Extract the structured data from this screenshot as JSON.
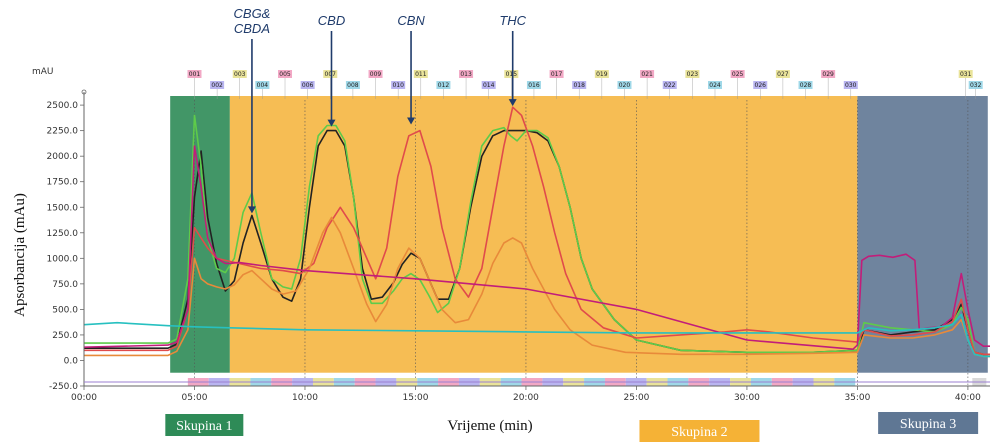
{
  "chart_data": {
    "type": "line",
    "ylabel": "Apsorbancija (mAu)",
    "xlabel": "Vrijeme (min)",
    "y_unit": "mAU",
    "xlim": [
      0,
      41
    ],
    "ylim": [
      -250,
      2550
    ],
    "x_ticks": [
      "00:00",
      "05:00",
      "10:00",
      "15:00",
      "20:00",
      "25:00",
      "30:00",
      "35:00",
      "40:00"
    ],
    "x_tick_values": [
      0,
      5,
      10,
      15,
      20,
      25,
      30,
      35,
      40
    ],
    "y_ticks": [
      "-250.0",
      "0.0",
      "250.0",
      "500.0",
      "750.0",
      "1000.0",
      "1250.0",
      "1500.0",
      "1750.0",
      "2000.0",
      "2250.0",
      "2500.0"
    ],
    "y_tick_values": [
      -250,
      0,
      250,
      500,
      750,
      1000,
      1250,
      1500,
      1750,
      2000,
      2250,
      2500
    ],
    "grid": "vertical dotted",
    "regions": [
      {
        "label": "Skupina 1",
        "x_start": 3.9,
        "x_end": 6.6,
        "color": "#2e8b57"
      },
      {
        "label": "Skupina 2",
        "x_start": 6.6,
        "x_end": 35.0,
        "color": "#f5b236"
      },
      {
        "label": "Skupina 3",
        "x_start": 35.0,
        "x_end": 40.9,
        "color": "#5f7794"
      }
    ],
    "annotations": [
      {
        "text": "CBG&\nCBDA",
        "x": 7.6,
        "y": 1420
      },
      {
        "text": "CBD",
        "x": 11.2,
        "y": 2270
      },
      {
        "text": "CBN",
        "x": 14.8,
        "y": 2290
      },
      {
        "text": "THC",
        "x": 19.4,
        "y": 2470
      }
    ],
    "fractions": [
      "001",
      "002",
      "003",
      "004",
      "005",
      "006",
      "007",
      "008",
      "009",
      "010",
      "011",
      "012",
      "013",
      "014",
      "015",
      "016",
      "017",
      "018",
      "019",
      "020",
      "021",
      "022",
      "023",
      "024",
      "025",
      "026",
      "027",
      "028",
      "029",
      "030",
      "031",
      "032"
    ],
    "series": [
      {
        "color": "#222222",
        "x": [
          0,
          3.8,
          4.2,
          4.7,
          5.0,
          5.3,
          5.6,
          6.0,
          6.4,
          6.8,
          7.2,
          7.6,
          8.0,
          8.5,
          9.0,
          9.4,
          9.8,
          10.2,
          10.6,
          11.0,
          11.4,
          11.8,
          12.2,
          12.6,
          13.0,
          13.5,
          14.0,
          14.4,
          14.8,
          15.2,
          15.6,
          16.0,
          16.5,
          17.0,
          17.5,
          18.0,
          18.5,
          19.0,
          19.5,
          20.0,
          20.5,
          21.0,
          21.5,
          22.0,
          22.5,
          23.0,
          24.0,
          25.0,
          27.0,
          30.0,
          33.0,
          35.0,
          35.3,
          36.5,
          37.5,
          38.5,
          39.3,
          39.7,
          40.0,
          40.3,
          40.7,
          41.0
        ],
        "y": [
          120,
          120,
          160,
          600,
          1600,
          2050,
          1400,
          950,
          680,
          780,
          1150,
          1420,
          1150,
          800,
          620,
          580,
          800,
          1500,
          2100,
          2250,
          2250,
          2100,
          1600,
          900,
          600,
          620,
          760,
          940,
          1050,
          1000,
          800,
          600,
          600,
          900,
          1500,
          2000,
          2200,
          2250,
          2250,
          2250,
          2230,
          2150,
          1900,
          1500,
          1000,
          700,
          400,
          200,
          100,
          80,
          80,
          100,
          300,
          250,
          280,
          300,
          400,
          550,
          300,
          80,
          60,
          60
        ]
      },
      {
        "color": "#5ecb4a",
        "x": [
          0,
          3.8,
          4.2,
          4.7,
          5.0,
          5.3,
          5.6,
          6.0,
          6.4,
          6.8,
          7.2,
          7.6,
          8.0,
          8.5,
          9.0,
          9.4,
          9.8,
          10.2,
          10.6,
          11.0,
          11.4,
          11.8,
          12.2,
          12.6,
          13.0,
          13.5,
          14.0,
          14.4,
          14.8,
          15.2,
          15.6,
          16.0,
          16.5,
          17.0,
          17.5,
          18.0,
          18.5,
          19.0,
          19.3,
          19.6,
          20.0,
          20.5,
          21.0,
          21.5,
          22.0,
          22.5,
          23.0,
          24.0,
          25.0,
          27.0,
          30.0,
          33.0,
          35.0,
          35.3,
          36.5,
          37.5,
          38.5,
          39.3,
          39.7,
          40.0,
          40.3,
          40.7,
          41.0
        ],
        "y": [
          170,
          170,
          210,
          800,
          2400,
          1900,
          1200,
          900,
          860,
          1000,
          1450,
          1640,
          1250,
          800,
          720,
          700,
          1000,
          1700,
          2200,
          2300,
          2300,
          2150,
          1600,
          800,
          560,
          560,
          680,
          800,
          850,
          790,
          640,
          470,
          560,
          900,
          1550,
          2100,
          2250,
          2280,
          2200,
          2150,
          2250,
          2250,
          2180,
          1900,
          1500,
          1000,
          700,
          400,
          200,
          100,
          80,
          80,
          100,
          370,
          320,
          300,
          280,
          350,
          520,
          400,
          80,
          60,
          60
        ]
      },
      {
        "color": "#e04b4b",
        "x": [
          0,
          3.8,
          4.2,
          4.7,
          5.0,
          5.3,
          5.6,
          6.0,
          6.4,
          6.8,
          7.2,
          7.6,
          8.0,
          9.0,
          9.8,
          10.4,
          11.0,
          11.6,
          12.2,
          12.8,
          13.2,
          13.7,
          14.2,
          14.7,
          15.2,
          15.7,
          16.2,
          16.8,
          17.4,
          18.0,
          18.5,
          19.0,
          19.4,
          19.8,
          20.3,
          20.8,
          21.3,
          21.8,
          22.5,
          23.5,
          25.0,
          27.0,
          29.0,
          30.0,
          31.0,
          33.0,
          35.0,
          35.3,
          36.5,
          37.5,
          38.5,
          39.3,
          39.7,
          40.0,
          40.3,
          40.7,
          41.0
        ],
        "y": [
          100,
          100,
          140,
          500,
          1300,
          1200,
          1100,
          1000,
          980,
          960,
          940,
          920,
          900,
          880,
          850,
          950,
          1300,
          1500,
          1300,
          1000,
          800,
          1100,
          1800,
          2200,
          2250,
          1900,
          1300,
          800,
          620,
          900,
          1500,
          2100,
          2480,
          2400,
          2100,
          1700,
          1250,
          850,
          500,
          320,
          220,
          250,
          280,
          300,
          280,
          220,
          180,
          300,
          240,
          250,
          280,
          380,
          600,
          300,
          80,
          60,
          60
        ]
      },
      {
        "color": "#e88a3a",
        "x": [
          0,
          3.8,
          4.2,
          4.7,
          5.0,
          5.3,
          5.6,
          6.0,
          6.4,
          6.8,
          7.2,
          7.6,
          8.0,
          8.5,
          9.0,
          9.6,
          10.2,
          10.8,
          11.2,
          11.6,
          12.2,
          12.8,
          13.2,
          13.7,
          14.2,
          14.7,
          15.2,
          15.7,
          16.2,
          16.8,
          17.4,
          18.0,
          18.5,
          19.0,
          19.4,
          19.8,
          20.3,
          20.8,
          21.3,
          22.0,
          23.0,
          24.5,
          27.0,
          30.0,
          33.0,
          35.0,
          35.3,
          36.5,
          37.5,
          38.5,
          39.3,
          39.7,
          40.0,
          40.3,
          40.7,
          41.0
        ],
        "y": [
          50,
          50,
          90,
          300,
          1000,
          800,
          750,
          720,
          700,
          740,
          840,
          880,
          800,
          700,
          650,
          680,
          900,
          1250,
          1400,
          1250,
          900,
          550,
          380,
          550,
          900,
          1100,
          1000,
          750,
          500,
          370,
          400,
          650,
          950,
          1150,
          1200,
          1150,
          900,
          700,
          500,
          300,
          150,
          80,
          60,
          60,
          70,
          80,
          250,
          220,
          220,
          250,
          300,
          400,
          200,
          60,
          40,
          40
        ]
      },
      {
        "color": "#c21d7a",
        "x": [
          0,
          3.8,
          4.2,
          4.7,
          5.0,
          5.3,
          5.6,
          6.0,
          6.4,
          6.6,
          7.0,
          8.0,
          10.0,
          15.0,
          20.0,
          25.0,
          30.0,
          34.8,
          35.0,
          35.2,
          35.5,
          36.0,
          36.6,
          37.2,
          37.6,
          37.8,
          38.2,
          38.8,
          39.3,
          39.7,
          40.0,
          40.3,
          40.7,
          41.0
        ],
        "y": [
          130,
          150,
          180,
          500,
          2100,
          1700,
          1200,
          1000,
          950,
          950,
          960,
          930,
          880,
          800,
          700,
          500,
          200,
          110,
          150,
          980,
          1020,
          1030,
          1010,
          1040,
          980,
          300,
          320,
          330,
          420,
          850,
          500,
          200,
          140,
          140
        ]
      },
      {
        "color": "#27c0c0",
        "x": [
          0,
          1.5,
          3.8,
          5.0,
          6.6,
          10,
          15,
          20,
          25,
          30,
          35,
          35.5,
          36.5,
          37.5,
          38.5,
          39.3,
          39.7,
          40.0,
          40.3,
          40.7,
          41.0
        ],
        "y": [
          350,
          370,
          340,
          330,
          320,
          300,
          290,
          280,
          270,
          270,
          270,
          320,
          290,
          300,
          320,
          350,
          450,
          200,
          60,
          40,
          40
        ]
      }
    ]
  }
}
